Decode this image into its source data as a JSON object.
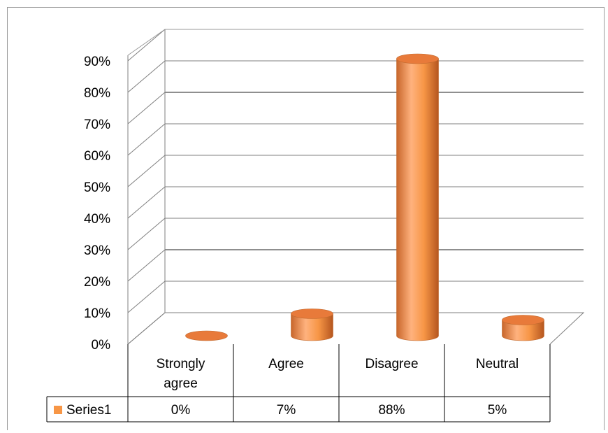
{
  "chart_data": {
    "type": "bar",
    "style": "3d-cylinder",
    "categories": [
      "Strongly agree",
      "Agree",
      "Disagree",
      "Neutral"
    ],
    "category_lines": [
      [
        "Strongly",
        "agree"
      ],
      [
        "Agree"
      ],
      [
        "Disagree"
      ],
      [
        "Neutral"
      ]
    ],
    "series": [
      {
        "name": "Series1",
        "values": [
          0,
          7,
          88,
          5
        ],
        "value_labels": [
          "0%",
          "7%",
          "88%",
          "5%"
        ],
        "color": "#f79646"
      }
    ],
    "y_ticks": [
      "0%",
      "10%",
      "20%",
      "30%",
      "40%",
      "50%",
      "60%",
      "70%",
      "80%",
      "90%"
    ],
    "ylim": [
      0,
      90
    ],
    "grid": true,
    "legend": "data-table"
  }
}
